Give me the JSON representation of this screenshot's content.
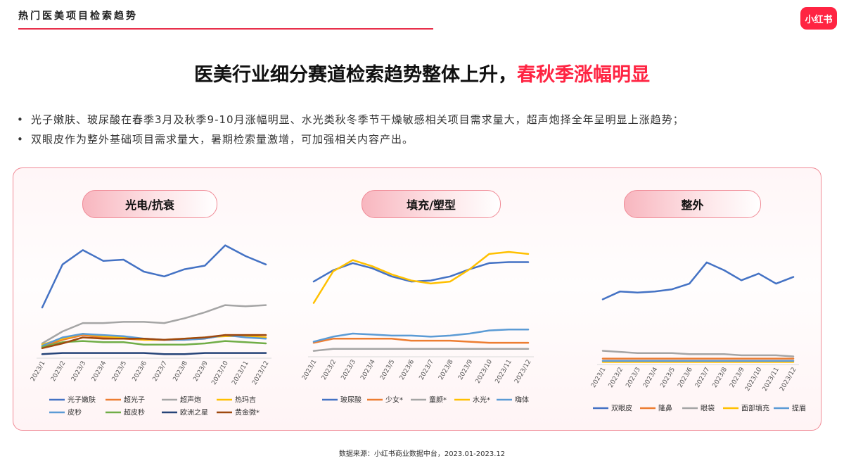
{
  "header": {
    "section_title": "热门医美项目检索趋势",
    "logo_text": "小红书"
  },
  "headline": {
    "main": "医美行业细分赛道检索趋势整体上升，",
    "accent": "春秋季涨幅明显"
  },
  "bullets": [
    "光子嫩肤、玻尿酸在春季3月及秋季9-10月涨幅明显、水光类秋冬季节干燥敏感相关项目需求量大，超声炮择全年呈明显上涨趋势；",
    "双眼皮作为整外基础项目需求量大，暑期检索量激增，可加强相关内容产出。"
  ],
  "bullet_symbol": "•",
  "panels": [
    {
      "title": "光电/抗衰"
    },
    {
      "title": "填充/塑型"
    },
    {
      "title": "整外"
    }
  ],
  "source": "数据来源：小红书商业数据中台，2023.01-2023.12",
  "colors": {
    "accent": "#ff2442",
    "border": "#f08a96"
  },
  "chart_data": [
    {
      "type": "line",
      "categories": [
        "2023/1",
        "2023/2",
        "2023/3",
        "2023/4",
        "2023/5",
        "2023/6",
        "2023/7",
        "2023/8",
        "2023/9",
        "2023/10",
        "2023/11",
        "2023/12"
      ],
      "ylim": [
        0,
        100
      ],
      "legend_position": "bottom",
      "series": [
        {
          "name": "光子嫩肤",
          "color": "#4472c4",
          "values": [
            40,
            76,
            88,
            79,
            80,
            70,
            66,
            72,
            75,
            92,
            83,
            76
          ]
        },
        {
          "name": "超光子",
          "color": "#ed7d31",
          "values": [
            7,
            13,
            17,
            15,
            14,
            13,
            13,
            13,
            14,
            17,
            17,
            17
          ]
        },
        {
          "name": "超声炮",
          "color": "#a5a5a5",
          "values": [
            10,
            20,
            27,
            27,
            28,
            28,
            27,
            31,
            36,
            42,
            41,
            42
          ]
        },
        {
          "name": "热玛吉",
          "color": "#ffc000",
          "values": [
            9,
            14,
            18,
            16,
            15,
            13,
            13,
            14,
            15,
            16,
            16,
            15
          ]
        },
        {
          "name": "皮秒",
          "color": "#5b9bd5",
          "values": [
            8,
            15,
            18,
            17,
            16,
            14,
            13,
            13,
            14,
            17,
            15,
            14
          ]
        },
        {
          "name": "超皮秒",
          "color": "#70ad47",
          "values": [
            7,
            11,
            12,
            11,
            11,
            9,
            9,
            9,
            10,
            12,
            11,
            10
          ]
        },
        {
          "name": "欧洲之星",
          "color": "#264478",
          "values": [
            1,
            2,
            2,
            2,
            2,
            2,
            1,
            1,
            2,
            2,
            2,
            2
          ]
        },
        {
          "name": "黄金微*",
          "color": "#9e480e",
          "values": [
            6,
            10,
            15,
            14,
            14,
            14,
            13,
            14,
            15,
            17,
            17,
            17
          ]
        }
      ]
    },
    {
      "type": "line",
      "categories": [
        "2023/1",
        "2023/2",
        "2023/3",
        "2023/4",
        "2023/5",
        "2023/6",
        "2023/7",
        "2023/8",
        "2023/9",
        "2023/10",
        "2023/11",
        "2023/12"
      ],
      "ylim": [
        0,
        100
      ],
      "legend_position": "bottom",
      "series": [
        {
          "name": "玻尿酸",
          "color": "#4472c4",
          "values": [
            71,
            82,
            89,
            84,
            76,
            71,
            72,
            76,
            83,
            89,
            90,
            90
          ]
        },
        {
          "name": "少女*",
          "color": "#ed7d31",
          "values": [
            11,
            15,
            15,
            15,
            15,
            13,
            13,
            13,
            12,
            11,
            11,
            11
          ]
        },
        {
          "name": "童颜*",
          "color": "#a5a5a5",
          "values": [
            3,
            5,
            5,
            5,
            5,
            5,
            5,
            5,
            5,
            5,
            5,
            5
          ]
        },
        {
          "name": "水光*",
          "color": "#ffc000",
          "values": [
            50,
            81,
            92,
            86,
            78,
            72,
            69,
            71,
            83,
            98,
            100,
            98
          ]
        },
        {
          "name": "嗨体",
          "color": "#5b9bd5",
          "values": [
            12,
            17,
            20,
            19,
            18,
            18,
            17,
            18,
            20,
            23,
            24,
            24
          ]
        }
      ]
    },
    {
      "type": "line",
      "categories": [
        "2023/1",
        "2023/2",
        "2023/3",
        "2023/4",
        "2023/5",
        "2023/6",
        "2023/7",
        "2023/8",
        "2023/9",
        "2023/10",
        "2023/11",
        "2023/12"
      ],
      "ylim": [
        0,
        100
      ],
      "legend_position": "bottom",
      "series": [
        {
          "name": "双眼皮",
          "color": "#4472c4",
          "values": [
            57,
            64,
            63,
            64,
            66,
            71,
            90,
            83,
            74,
            80,
            71,
            77
          ]
        },
        {
          "name": "隆鼻",
          "color": "#ed7d31",
          "values": [
            4,
            4,
            4,
            4,
            4,
            4,
            4,
            4,
            4,
            4,
            4,
            4
          ]
        },
        {
          "name": "眼袋",
          "color": "#a5a5a5",
          "values": [
            11,
            10,
            9,
            9,
            9,
            8,
            8,
            8,
            7,
            7,
            7,
            6
          ]
        },
        {
          "name": "面部填充",
          "color": "#ffc000",
          "values": [
            1,
            1,
            1,
            1,
            1,
            1,
            1,
            1,
            1,
            1,
            1,
            1
          ]
        },
        {
          "name": "提眉",
          "color": "#5b9bd5",
          "values": [
            2,
            2,
            2,
            2,
            2,
            2,
            2,
            2,
            2,
            2,
            2,
            2
          ]
        }
      ]
    }
  ]
}
